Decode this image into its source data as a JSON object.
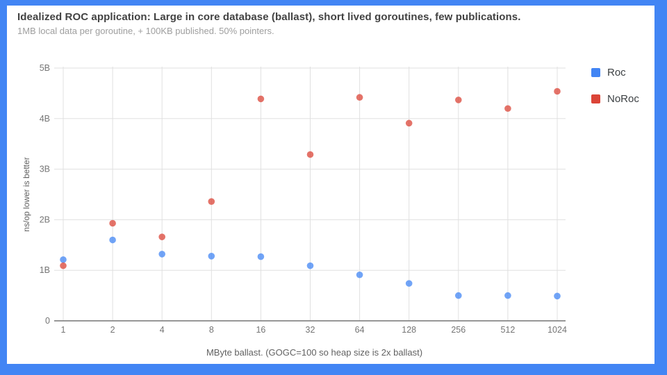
{
  "frame": {
    "background_color": "#4285F4",
    "card_color": "#ffffff"
  },
  "header": {
    "title": "Idealized ROC application: Large in core database (ballast), short lived goroutines, few publications.",
    "subtitle": "1MB local data per goroutine, + 100KB published. 50% pointers."
  },
  "legend": [
    {
      "label": "Roc",
      "color": "#4285F4"
    },
    {
      "label": "NoRoc",
      "color": "#DB4437"
    }
  ],
  "chart_data": {
    "type": "scatter",
    "title": "Idealized ROC application: Large in core database (ballast), short lived goroutines, few publications.",
    "subtitle": "1MB local data per goroutine, + 100KB published. 50% pointers.",
    "categories": [
      "1",
      "2",
      "4",
      "8",
      "16",
      "32",
      "64",
      "128",
      "256",
      "512",
      "1024"
    ],
    "series": [
      {
        "name": "Roc",
        "color": "#4285F4",
        "values": [
          1.21,
          1.6,
          1.32,
          1.28,
          1.27,
          1.09,
          0.91,
          0.74,
          0.5,
          0.5,
          0.49
        ]
      },
      {
        "name": "NoRoc",
        "color": "#DB4437",
        "values": [
          1.09,
          1.93,
          1.66,
          2.36,
          4.39,
          3.29,
          4.42,
          3.91,
          4.37,
          4.2,
          4.54
        ]
      }
    ],
    "values_unit": "billions of ns/op",
    "xlabel": "MByte ballast. (GOGC=100 so heap size is 2x ballast)",
    "ylabel": "ns/op lower is better",
    "y_ticks": [
      "0",
      "1B",
      "2B",
      "3B",
      "4B",
      "5B"
    ],
    "ylim": [
      0,
      5
    ],
    "grid": true,
    "legend_position": "right",
    "point_opacity": 0.75,
    "grid_color": "#e0e0e0",
    "axis_line_color": "#757575",
    "tick_label_color": "#757575"
  }
}
